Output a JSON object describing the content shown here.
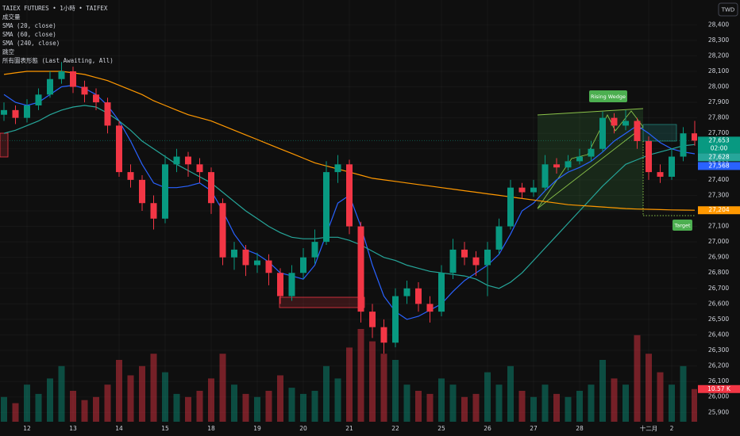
{
  "header": {
    "title": "TAIEX FUTURES • 1小時 • TAIFEX",
    "volume_label": "成交量",
    "gaps_label": "跳空",
    "patterns_label": "所有圖表形態 (Last Awaiting, All)"
  },
  "currency": "TWD",
  "chart_data": {
    "type": "candlestick",
    "categories": [
      null,
      null,
      "12",
      null,
      null,
      null,
      "13",
      null,
      null,
      null,
      "14",
      null,
      null,
      null,
      "15",
      null,
      null,
      null,
      "18",
      null,
      null,
      null,
      "19",
      null,
      null,
      null,
      "20",
      null,
      null,
      null,
      "21",
      null,
      null,
      null,
      "22",
      null,
      null,
      null,
      "25",
      null,
      null,
      null,
      "26",
      null,
      null,
      null,
      "27",
      null,
      null,
      null,
      "28",
      null,
      null,
      null,
      null,
      null,
      "十二月",
      null,
      "2",
      null,
      null
    ],
    "open": [
      27820,
      27850,
      27800,
      27880,
      27950,
      28050,
      28100,
      28000,
      27950,
      27900,
      27750,
      27450,
      27400,
      27250,
      27150,
      27500,
      27550,
      27500,
      27450,
      27250,
      26900,
      26950,
      26850,
      26880,
      26800,
      26650,
      26800,
      26900,
      27000,
      27450,
      27500,
      27100,
      26550,
      26450,
      26350,
      26650,
      26700,
      26600,
      26550,
      26800,
      26950,
      26900,
      26850,
      26950,
      27100,
      27350,
      27320,
      27350,
      27500,
      27480,
      27520,
      27550,
      27600,
      27800,
      27750,
      27780,
      27650,
      27450,
      27420,
      27550,
      27700
    ],
    "high": [
      27900,
      27880,
      27920,
      27990,
      28100,
      28160,
      28130,
      28040,
      27990,
      27930,
      27780,
      27500,
      27430,
      27300,
      27560,
      27600,
      27580,
      27540,
      27480,
      27280,
      27000,
      26980,
      26930,
      26920,
      26830,
      26850,
      26960,
      27080,
      27520,
      27560,
      27530,
      27130,
      26600,
      26500,
      26700,
      26750,
      26740,
      26650,
      26850,
      27020,
      27000,
      26940,
      27000,
      27150,
      27400,
      27380,
      27400,
      27560,
      27540,
      27560,
      27600,
      27650,
      27840,
      27830,
      27850,
      27800,
      27680,
      27500,
      27600,
      27740,
      27780
    ],
    "low": [
      27780,
      27760,
      27770,
      27850,
      27930,
      28020,
      27960,
      27900,
      27850,
      27700,
      27420,
      27350,
      27200,
      27080,
      27120,
      27450,
      27420,
      27380,
      27180,
      26850,
      26820,
      26780,
      26800,
      26720,
      26600,
      26620,
      26760,
      26860,
      26980,
      27380,
      27050,
      26480,
      26380,
      26280,
      26320,
      26600,
      26550,
      26480,
      26520,
      26760,
      26850,
      26780,
      26650,
      26920,
      27080,
      27280,
      27290,
      27330,
      27440,
      27460,
      27500,
      27520,
      27580,
      27700,
      27720,
      27600,
      27400,
      27380,
      27400,
      27520,
      27620
    ],
    "close": [
      27850,
      27800,
      27880,
      27950,
      28050,
      28100,
      28000,
      27950,
      27900,
      27750,
      27450,
      27400,
      27250,
      27150,
      27500,
      27550,
      27500,
      27450,
      27250,
      26900,
      26950,
      26850,
      26880,
      26800,
      26650,
      26800,
      26900,
      27000,
      27450,
      27500,
      27100,
      26550,
      26450,
      26350,
      26650,
      26700,
      26600,
      26550,
      26800,
      26950,
      26900,
      26850,
      26950,
      27100,
      27350,
      27320,
      27350,
      27500,
      27480,
      27520,
      27550,
      27600,
      27800,
      27750,
      27780,
      27650,
      27450,
      27420,
      27550,
      27700,
      27653
    ],
    "up_color": "#089981",
    "down_color": "#f23645",
    "volume": {
      "values": [
        8,
        6,
        12,
        9,
        14,
        18,
        10,
        7,
        8,
        12,
        20,
        15,
        18,
        22,
        16,
        9,
        8,
        10,
        14,
        22,
        12,
        9,
        8,
        10,
        15,
        11,
        9,
        10,
        18,
        14,
        24,
        30,
        26,
        22,
        20,
        12,
        10,
        9,
        14,
        12,
        8,
        9,
        16,
        12,
        18,
        10,
        8,
        12,
        9,
        8,
        10,
        12,
        20,
        14,
        12,
        28,
        22,
        16,
        12,
        18,
        10.57
      ]
    },
    "series": [
      {
        "name": "SMA (20, close)",
        "color": "#2962ff",
        "values": [
          27950,
          27900,
          27880,
          27900,
          27950,
          28000,
          28010,
          27990,
          27950,
          27880,
          27780,
          27650,
          27500,
          27380,
          27350,
          27350,
          27360,
          27380,
          27330,
          27200,
          27050,
          26950,
          26920,
          26870,
          26800,
          26780,
          26760,
          26850,
          27050,
          27250,
          27300,
          27100,
          26850,
          26650,
          26550,
          26500,
          26520,
          26560,
          26600,
          26680,
          26750,
          26800,
          26850,
          26920,
          27050,
          27200,
          27250,
          27330,
          27400,
          27450,
          27480,
          27520,
          27580,
          27650,
          27700,
          27750,
          27700,
          27640,
          27600,
          27580,
          27568
        ]
      },
      {
        "name": "SMA (60, close)",
        "color": "#26a69a",
        "values": [
          27700,
          27720,
          27750,
          27780,
          27820,
          27850,
          27870,
          27880,
          27870,
          27830,
          27780,
          27720,
          27650,
          27600,
          27550,
          27500,
          27460,
          27420,
          27380,
          27320,
          27260,
          27200,
          27150,
          27100,
          27060,
          27030,
          27020,
          27020,
          27030,
          27030,
          27010,
          26980,
          26940,
          26900,
          26880,
          26850,
          26830,
          26810,
          26800,
          26790,
          26780,
          26760,
          26720,
          26700,
          26740,
          26800,
          26880,
          26960,
          27040,
          27120,
          27200,
          27280,
          27360,
          27430,
          27500,
          27530,
          27560,
          27580,
          27600,
          27620,
          27628
        ]
      },
      {
        "name": "SMA (240, close)",
        "color": "#ff9800",
        "values": [
          28080,
          28090,
          28100,
          28100,
          28100,
          28100,
          28090,
          28080,
          28060,
          28040,
          28010,
          27980,
          27950,
          27910,
          27880,
          27850,
          27820,
          27800,
          27780,
          27750,
          27720,
          27690,
          27660,
          27630,
          27600,
          27570,
          27540,
          27510,
          27490,
          27470,
          27450,
          27430,
          27410,
          27400,
          27390,
          27380,
          27370,
          27360,
          27350,
          27340,
          27330,
          27320,
          27310,
          27300,
          27290,
          27280,
          27270,
          27260,
          27250,
          27240,
          27235,
          27230,
          27225,
          27220,
          27215,
          27212,
          27210,
          27208,
          27206,
          27205,
          27204
        ]
      }
    ],
    "ylim": [
      25840,
      28560
    ],
    "yticks": [
      {
        "value": 25900,
        "label": "25,900"
      },
      {
        "value": 26000,
        "label": "26,000"
      },
      {
        "value": 26100,
        "label": "26,100"
      },
      {
        "value": 26200,
        "label": "26,200"
      },
      {
        "value": 26300,
        "label": "26,300"
      },
      {
        "value": 26400,
        "label": "26,400"
      },
      {
        "value": 26500,
        "label": "26,500"
      },
      {
        "value": 26600,
        "label": "26,600"
      },
      {
        "value": 26700,
        "label": "26,700"
      },
      {
        "value": 26800,
        "label": "26,800"
      },
      {
        "value": 26900,
        "label": "26,900"
      },
      {
        "value": 27000,
        "label": "27,000"
      },
      {
        "value": 27100,
        "label": "27,100"
      },
      {
        "value": 27200,
        "label": "27,200"
      },
      {
        "value": 27300,
        "label": "27,300"
      },
      {
        "value": 27400,
        "label": "27,400"
      },
      {
        "value": 27500,
        "label": "27,500"
      },
      {
        "value": 27600,
        "label": "27,600"
      },
      {
        "value": 27700,
        "label": "27,700"
      },
      {
        "value": 27800,
        "label": "27,800"
      },
      {
        "value": 27900,
        "label": "27,900"
      },
      {
        "value": 28000,
        "label": "28,000"
      },
      {
        "value": 28100,
        "label": "28,100"
      },
      {
        "value": 28200,
        "label": "28,200"
      },
      {
        "value": 28300,
        "label": "28,300"
      },
      {
        "value": 28400,
        "label": "28,400"
      }
    ],
    "grid": true,
    "price_labels": [
      {
        "value": 27653,
        "label": "27,653",
        "color": "#089981"
      },
      {
        "value": 27628,
        "label": "27,628",
        "color": "#26a69a"
      },
      {
        "value": 27568,
        "label": "27,568",
        "color": "#2962ff"
      },
      {
        "value": 27204,
        "label": "27,204",
        "color": "#ff9800"
      }
    ],
    "countdown": "02:00",
    "volume_label": {
      "value": 10.57,
      "label": "10.57 K",
      "color": "#f23645"
    },
    "annotations": {
      "pattern": "Rising Wedge",
      "target": "Target"
    }
  }
}
